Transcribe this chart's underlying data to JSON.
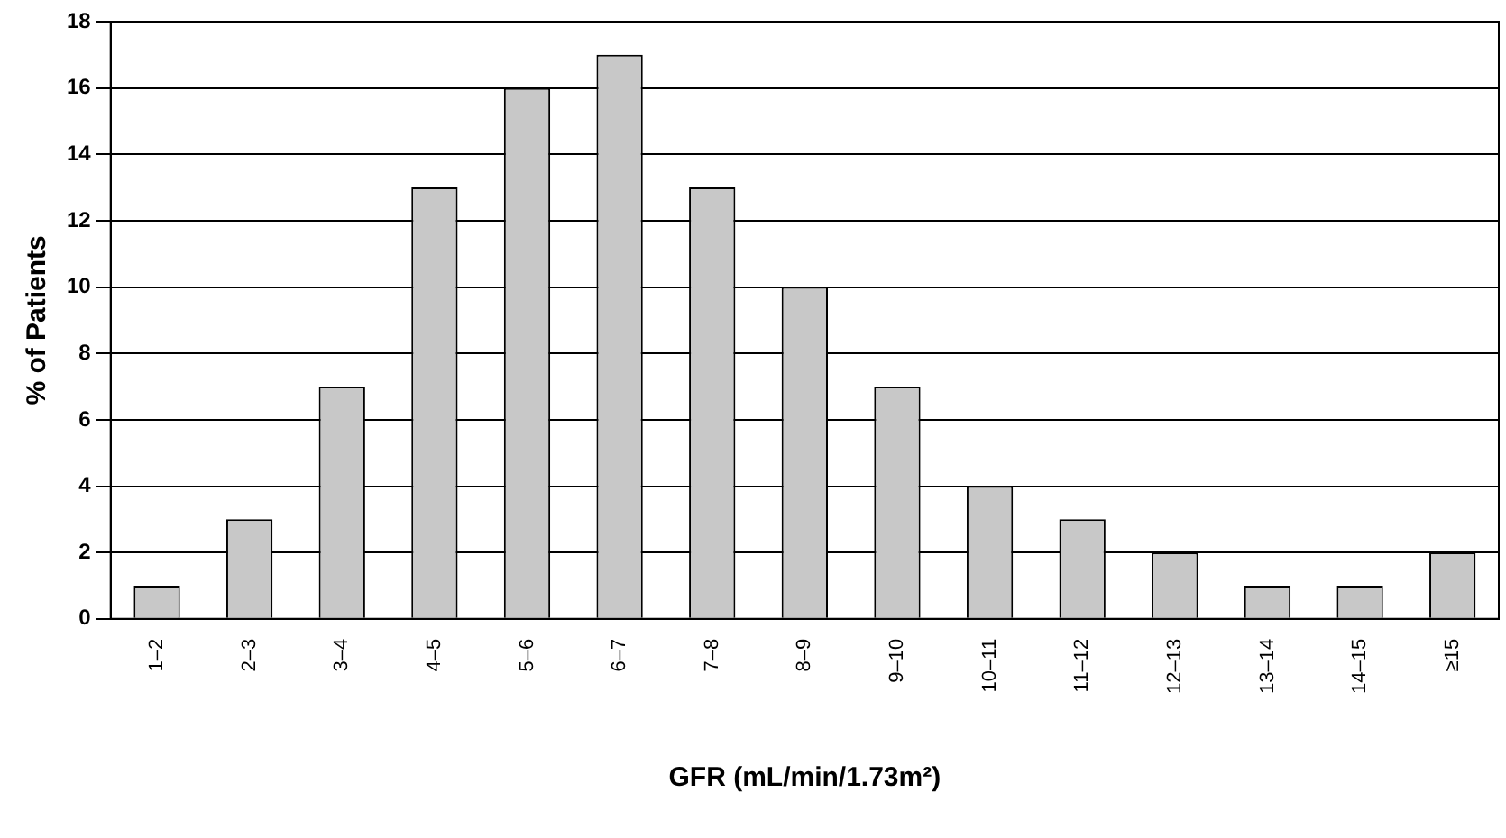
{
  "chart_data": {
    "type": "bar",
    "xlabel": "GFR (mL/min/1.73m²)",
    "ylabel": "% of Patients",
    "categories": [
      "1–2",
      "2–3",
      "3–4",
      "4–5",
      "5–6",
      "6–7",
      "7–8",
      "8–9",
      "9–10",
      "10–11",
      "11–12",
      "12–13",
      "13–14",
      "14–15",
      "≥15"
    ],
    "values": [
      1,
      3,
      7,
      13,
      16,
      17,
      13,
      10,
      7,
      4,
      3,
      2,
      1,
      1,
      2
    ],
    "color": "#c8c8c8",
    "ylim": [
      0,
      18
    ],
    "yticks": [
      0,
      2,
      4,
      6,
      8,
      10,
      12,
      14,
      16,
      18
    ],
    "grid": "y",
    "legend": false
  }
}
